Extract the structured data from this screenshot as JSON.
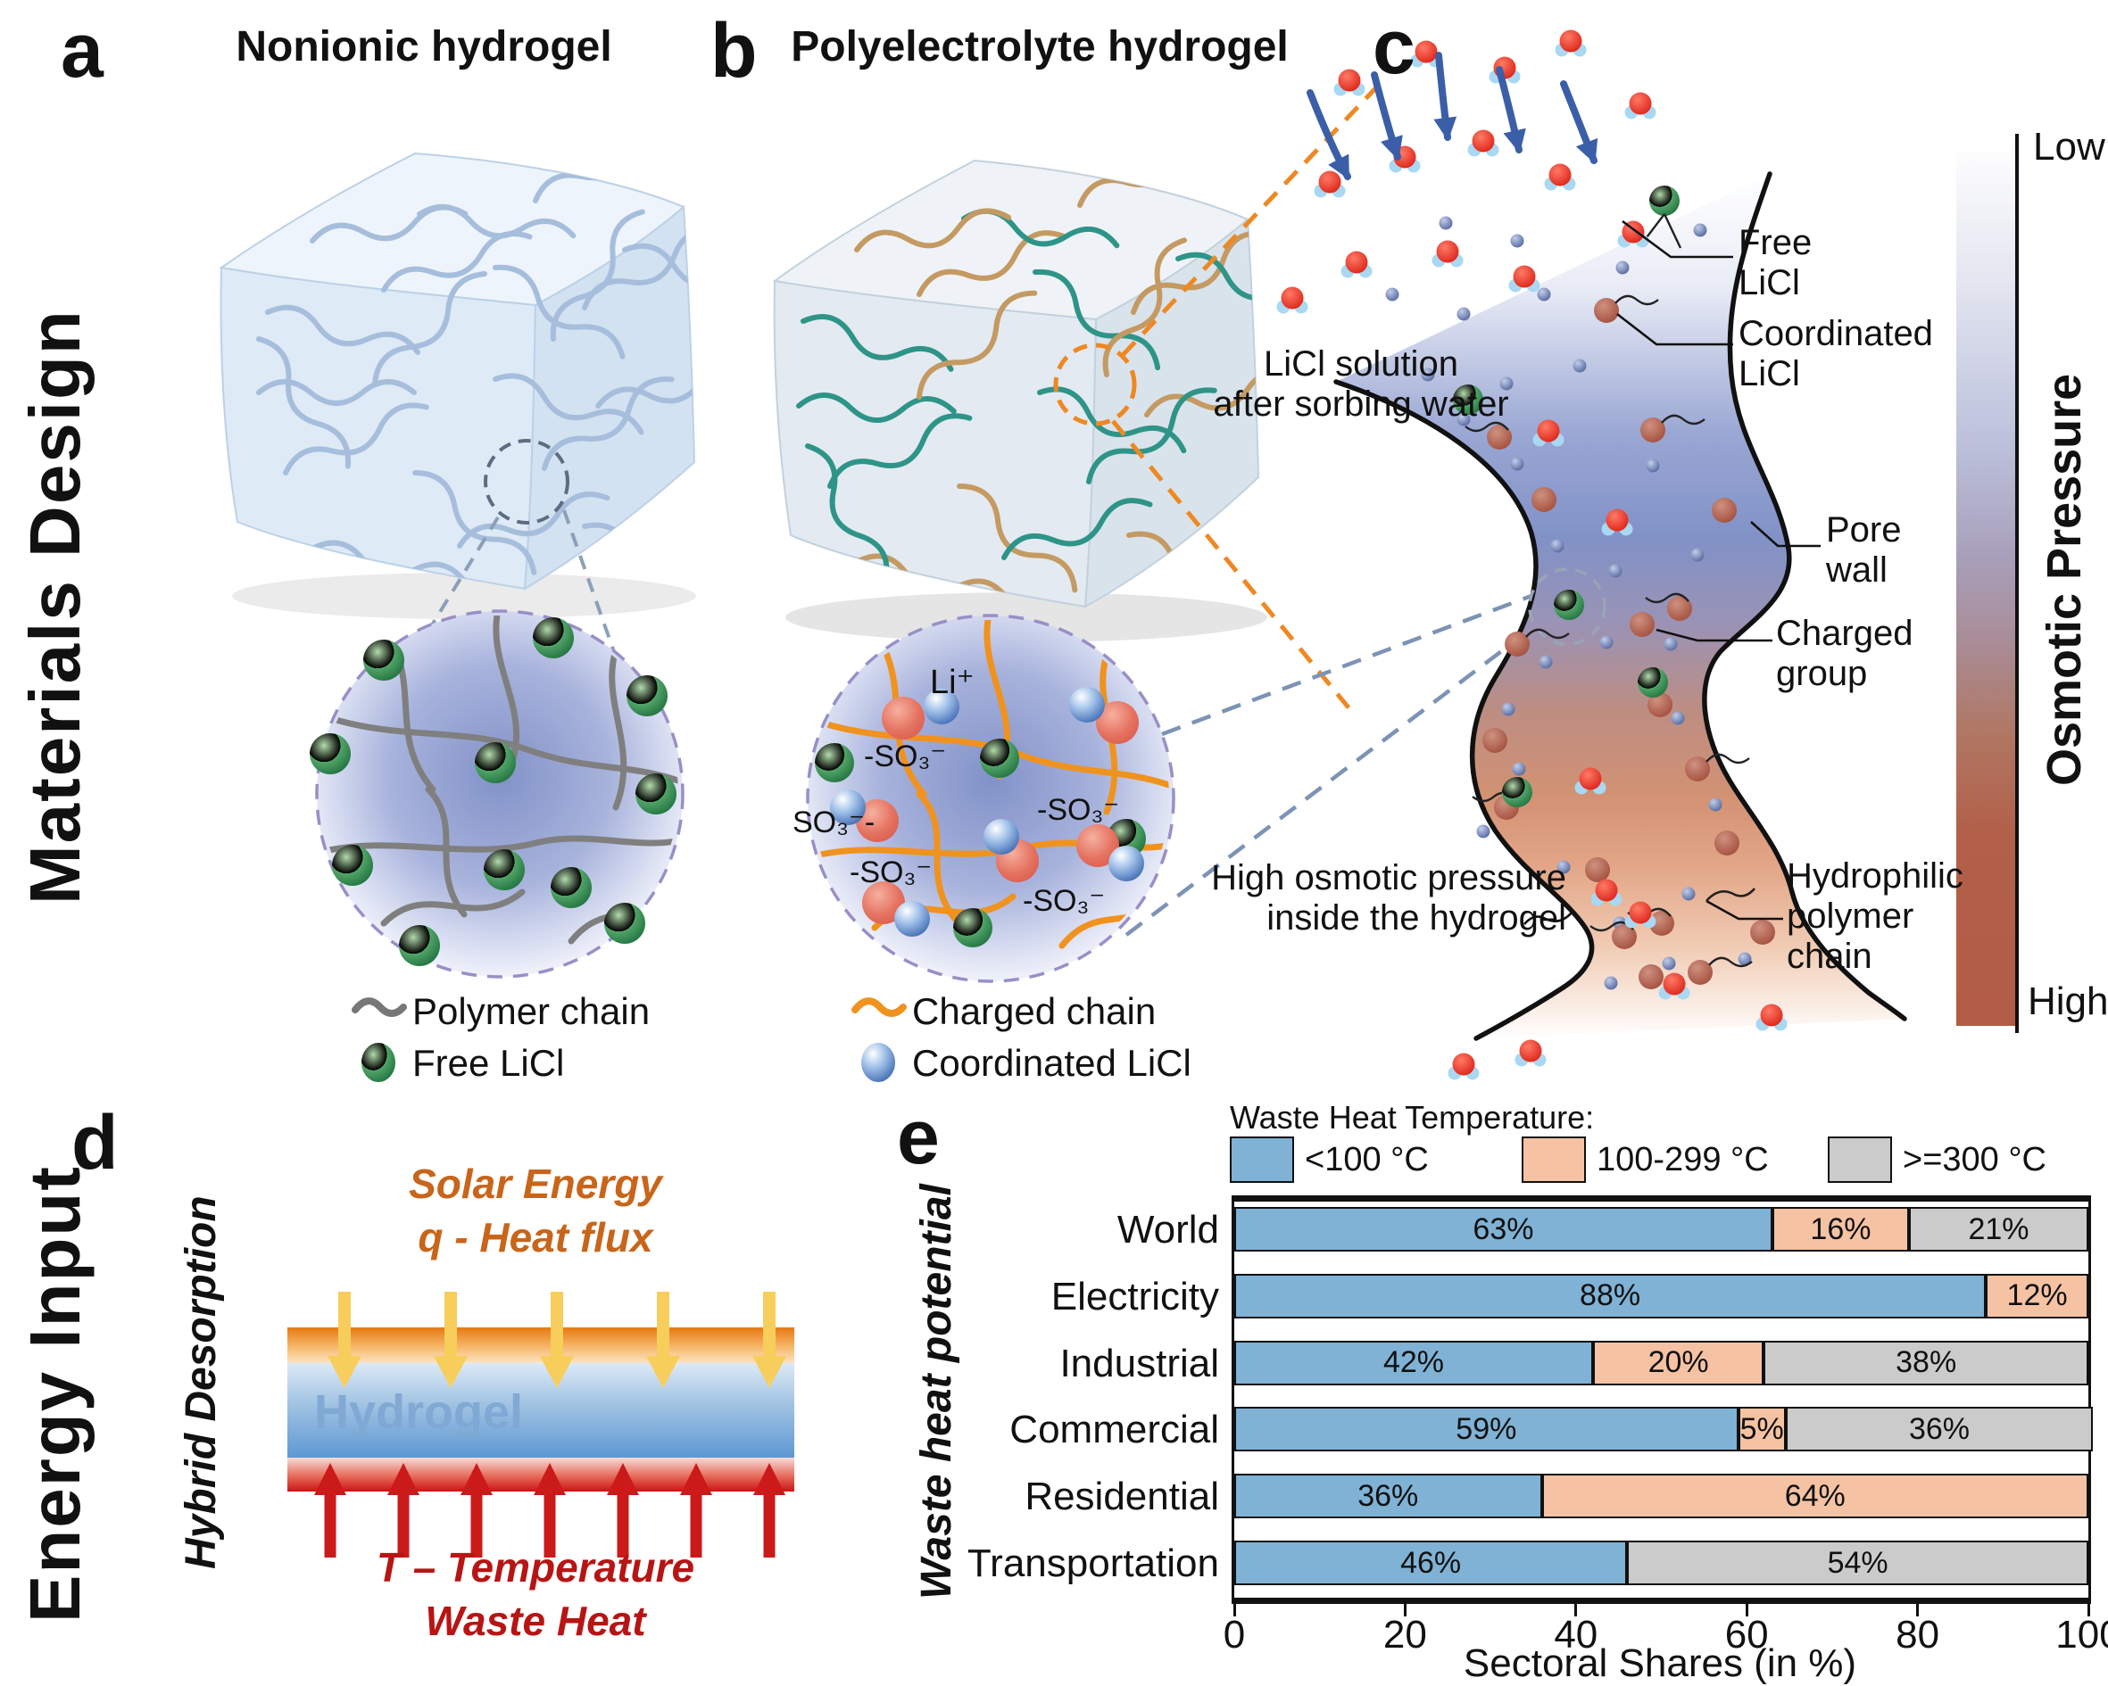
{
  "figure": {
    "section_labels": {
      "top": "Materials Design",
      "bottom": "Energy Input"
    }
  },
  "panel_a": {
    "label": "a",
    "title": "Nonionic hydrogel",
    "legend": [
      {
        "icon": "polymer-chain-icon",
        "label": "Polymer chain"
      },
      {
        "icon": "free-licl-icon",
        "label": "Free LiCl"
      }
    ]
  },
  "panel_b": {
    "label": "b",
    "title": "Polyelectrolyte hydrogel",
    "ions": {
      "li": "Li⁺",
      "so3_top": "-SO₃⁻",
      "so3_mid_left": "SO₃⁻-",
      "so3_right": "-SO₃⁻",
      "so3_bottom_left": "-SO₃⁻",
      "so3_bottom_mid": "-SO₃⁻"
    },
    "legend": [
      {
        "icon": "charged-chain-icon",
        "label": "Charged chain"
      },
      {
        "icon": "coordinated-licl-icon",
        "label": "Coordinated LiCl"
      }
    ]
  },
  "panel_c": {
    "label": "c",
    "annotations": {
      "licl_solution": "LiCl solution\nafter sorbing water",
      "free_licl": "Free\nLiCl",
      "coordinated_licl": "Coordinated\nLiCl",
      "pore_wall": "Pore\nwall",
      "charged_group": "Charged\ngroup",
      "high_osmotic": "High osmotic pressure\ninside the hydrogel",
      "hydrophilic": "Hydrophilic\npolymer\nchain"
    },
    "colorbar": {
      "top_label": "Low",
      "bottom_label": "High",
      "title": "Osmotic Pressure"
    }
  },
  "panel_d": {
    "label": "d",
    "rotated_label": "Hybrid Desorption",
    "solar_text": "Solar Energy\nq - Heat flux",
    "hydrogel_label": "Hydrogel",
    "waste_text": "T – Temperature\nWaste Heat"
  },
  "panel_e": {
    "label": "e",
    "rotated_label": "Waste heat potential"
  },
  "chart_data": {
    "type": "bar",
    "orientation": "horizontal",
    "stacked": true,
    "title": "",
    "legend_title": "Waste Heat Temperature:",
    "categories": [
      "World",
      "Electricity",
      "Industrial",
      "Commercial",
      "Residential",
      "Transportation"
    ],
    "series": [
      {
        "name": "<100 °C",
        "color": "#7FB2D5",
        "values": [
          63,
          88,
          42,
          59,
          36,
          46
        ]
      },
      {
        "name": "100-299 °C",
        "color": "#F5C3A3",
        "values": [
          16,
          12,
          20,
          5,
          64,
          0
        ]
      },
      {
        "name": ">=300 °C",
        "color": "#CBCBCB",
        "values": [
          21,
          0,
          38,
          36,
          0,
          54
        ]
      }
    ],
    "xlabel": "Sectoral Shares (in %)",
    "ylabel": "Waste heat potential",
    "xlim": [
      0,
      100
    ],
    "xticks": [
      0,
      20,
      40,
      60,
      80,
      100
    ],
    "grid": false,
    "legend_position": "top",
    "value_label_format": "{v}%"
  },
  "colors": {
    "bar_blue": "#7FB2D5",
    "bar_salmon": "#F5C3A3",
    "bar_gray": "#CBCBCB",
    "solar_orange": "#C8651A",
    "waste_red": "#B81414",
    "hydrogel_blue": "#7FA8D4",
    "charged_chain_orange": "#F0921E",
    "polymer_chain_gray": "#808080",
    "arrow_blue": "#3B5EA8",
    "pore_wall_black": "#111111"
  }
}
